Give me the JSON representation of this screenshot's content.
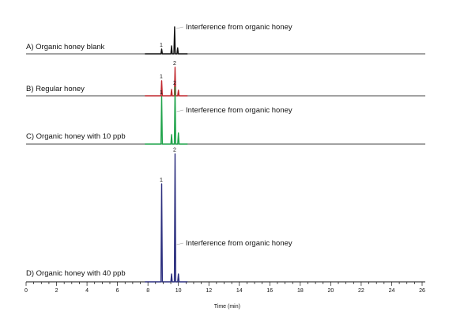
{
  "chart_data": {
    "type": "line",
    "subtype": "stacked-chromatogram",
    "xlabel": "Time (min)",
    "xlim": [
      0,
      26
    ],
    "x_ticks": [
      0,
      2,
      4,
      6,
      8,
      10,
      12,
      14,
      16,
      18,
      20,
      22,
      24,
      26
    ],
    "traces": [
      {
        "label": "A) Organic honey blank",
        "color": "#111111",
        "peaks": [
          {
            "x": 8.9,
            "height": 0.12,
            "label": "1"
          },
          {
            "x": 9.55,
            "height": 0.2,
            "label": ""
          },
          {
            "x": 9.75,
            "height": 0.68,
            "label": ""
          },
          {
            "x": 9.95,
            "height": 0.15,
            "label": ""
          }
        ],
        "annotation": "Interference from organic honey"
      },
      {
        "label": "B) Regular honey",
        "color": "#c0272d",
        "peaks": [
          {
            "x": 8.9,
            "height": 0.38,
            "label": "1"
          },
          {
            "x": 9.55,
            "height": 0.16,
            "label": ""
          },
          {
            "x": 9.78,
            "height": 0.72,
            "label": "2"
          },
          {
            "x": 10.0,
            "height": 0.14,
            "label": ""
          }
        ],
        "annotation": ""
      },
      {
        "label": "C) Organic honey with 10 ppb",
        "color": "#1fa34a",
        "peaks": [
          {
            "x": 8.9,
            "height": 0.6,
            "label": "1"
          },
          {
            "x": 9.55,
            "height": 0.12,
            "label": ""
          },
          {
            "x": 9.78,
            "height": 0.72,
            "label": "2"
          },
          {
            "x": 10.0,
            "height": 0.14,
            "label": ""
          }
        ],
        "annotation": "Interference from organic honey"
      },
      {
        "label": "D) Organic honey with 40 ppb",
        "color": "#2b2e7e",
        "peaks": [
          {
            "x": 8.9,
            "height": 0.75,
            "label": "1"
          },
          {
            "x": 9.55,
            "height": 0.06,
            "label": ""
          },
          {
            "x": 9.78,
            "height": 0.98,
            "label": "2"
          },
          {
            "x": 10.0,
            "height": 0.06,
            "label": ""
          }
        ],
        "annotation": "Interference from organic honey"
      }
    ]
  }
}
